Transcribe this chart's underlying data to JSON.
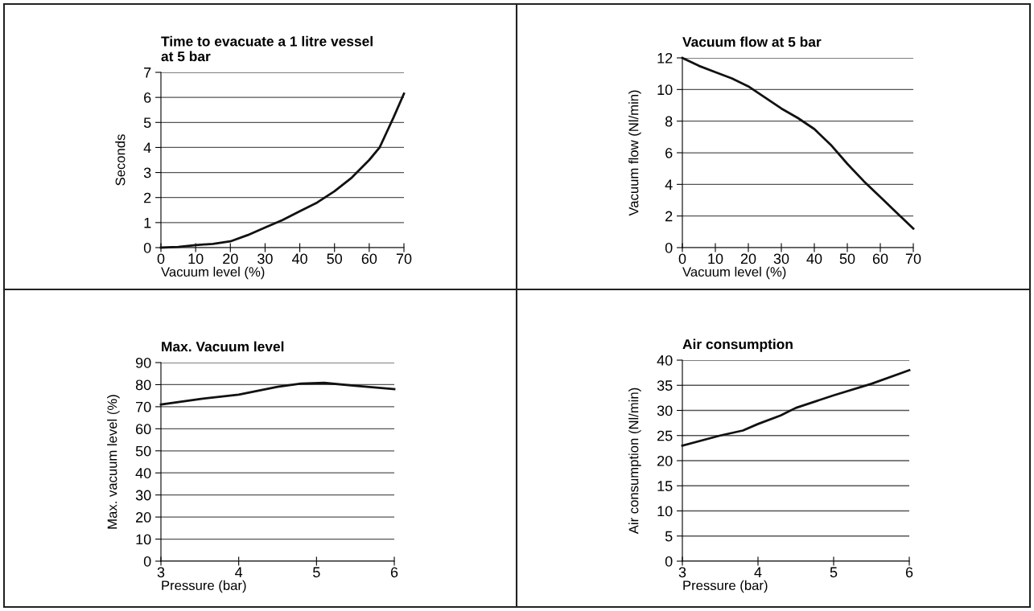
{
  "chart_data": [
    {
      "type": "line",
      "title": "Time to evacuate a 1 litre vessel\nat 5 bar",
      "xlabel": "Vacuum level (%)",
      "ylabel": "Seconds",
      "xlim": [
        0,
        70
      ],
      "xticks": [
        0,
        10,
        20,
        30,
        40,
        50,
        60,
        70
      ],
      "ylim": [
        0,
        7
      ],
      "yticks": [
        0,
        1,
        2,
        3,
        4,
        5,
        6,
        7
      ],
      "grid": "y",
      "marker": "none",
      "line_style": "solid",
      "series": [
        {
          "color": "#111111",
          "x": [
            0,
            5,
            10,
            15,
            20,
            25,
            30,
            35,
            40,
            45,
            50,
            55,
            60,
            63,
            65,
            67,
            70
          ],
          "values": [
            0,
            0.03,
            0.1,
            0.15,
            0.25,
            0.5,
            0.8,
            1.1,
            1.45,
            1.8,
            2.25,
            2.8,
            3.5,
            4.0,
            4.6,
            5.2,
            6.15
          ]
        }
      ]
    },
    {
      "type": "line",
      "title": "Vacuum flow at 5 bar",
      "xlabel": "Vacuum level (%)",
      "ylabel": "Vacuum flow (Nl/min)",
      "xlim": [
        0,
        70
      ],
      "xticks": [
        0,
        10,
        20,
        30,
        40,
        50,
        60,
        70
      ],
      "ylim": [
        0,
        12
      ],
      "yticks": [
        0,
        2,
        4,
        6,
        8,
        10,
        12
      ],
      "grid": "y",
      "marker": "none",
      "line_style": "solid",
      "series": [
        {
          "color": "#111111",
          "x": [
            0,
            5,
            10,
            15,
            20,
            25,
            30,
            35,
            40,
            45,
            50,
            55,
            60,
            65,
            70
          ],
          "values": [
            12,
            11.5,
            11.1,
            10.7,
            10.2,
            9.5,
            8.8,
            8.2,
            7.5,
            6.5,
            5.3,
            4.2,
            3.2,
            2.2,
            1.2
          ]
        }
      ]
    },
    {
      "type": "line",
      "title": "Max. Vacuum level",
      "xlabel": "Pressure (bar)",
      "ylabel": "Max. vacuum level (%)",
      "xlim": [
        3,
        6
      ],
      "xticks": [
        3,
        4,
        5,
        6
      ],
      "ylim": [
        0,
        90
      ],
      "yticks": [
        0,
        10,
        20,
        30,
        40,
        50,
        60,
        70,
        80,
        90
      ],
      "grid": "y",
      "marker": "none",
      "line_style": "solid",
      "series": [
        {
          "color": "#111111",
          "x": [
            3,
            3.5,
            4,
            4.5,
            4.8,
            5.1,
            5.5,
            6
          ],
          "values": [
            71,
            73.5,
            75.5,
            79,
            80.5,
            80.8,
            79.5,
            78
          ]
        }
      ]
    },
    {
      "type": "line",
      "title": "Air consumption",
      "xlabel": "Pressure (bar)",
      "ylabel": "Air consumption (Nl/min)",
      "xlim": [
        3,
        6
      ],
      "xticks": [
        3,
        4,
        5,
        6
      ],
      "ylim": [
        0,
        40
      ],
      "yticks": [
        0,
        5,
        10,
        15,
        20,
        25,
        30,
        35,
        40
      ],
      "grid": "y",
      "marker": "none",
      "line_style": "solid",
      "series": [
        {
          "color": "#111111",
          "x": [
            3,
            3.5,
            3.8,
            4,
            4.3,
            4.5,
            5,
            5.5,
            6
          ],
          "values": [
            23,
            25,
            26,
            27.3,
            29,
            30.5,
            33,
            35.3,
            38
          ]
        }
      ]
    }
  ]
}
